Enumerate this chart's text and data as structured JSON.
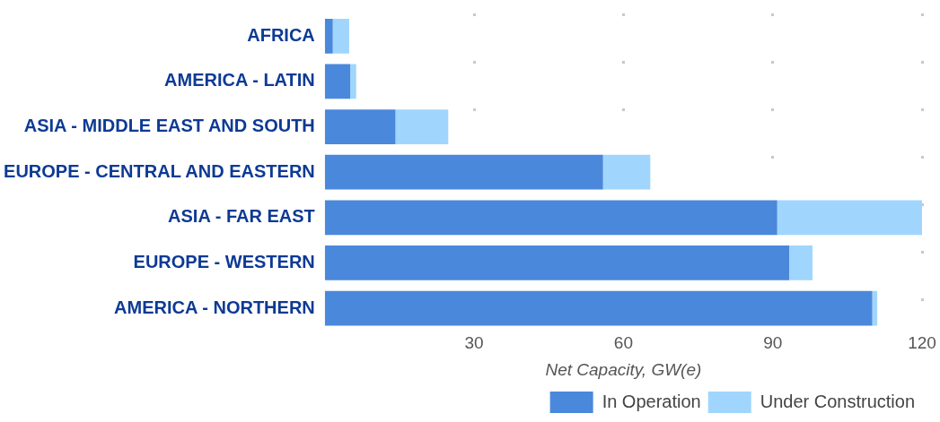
{
  "chart_data": {
    "type": "bar",
    "orientation": "horizontal",
    "stacked": true,
    "categories": [
      "AFRICA",
      "AMERICA - LATIN",
      "ASIA - MIDDLE EAST AND SOUTH",
      "EUROPE - CENTRAL AND EASTERN",
      "ASIA - FAR EAST",
      "EUROPE - WESTERN",
      "AMERICA - NORTHERN"
    ],
    "series": [
      {
        "name": "In Operation",
        "color": "#4a88dc",
        "values": [
          1.6,
          5.1,
          14.2,
          55.9,
          90.9,
          93.3,
          110
        ]
      },
      {
        "name": "Under Construction",
        "color": "#a0d6fd",
        "values": [
          3.3,
          1.2,
          10.6,
          9.5,
          29.1,
          4.7,
          1
        ]
      }
    ],
    "xlabel": "Net Capacity, GW(e)",
    "xlim": [
      0,
      120
    ],
    "xticks": [
      30,
      60,
      90,
      120
    ],
    "grid": "x",
    "legend": "bottom right"
  }
}
